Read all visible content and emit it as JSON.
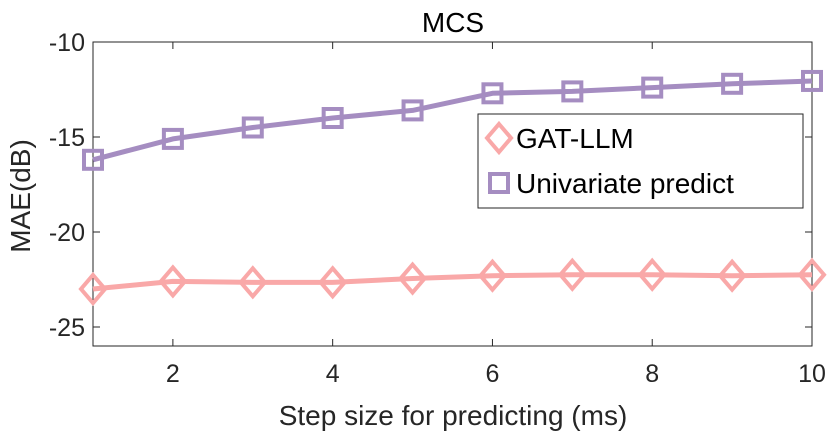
{
  "chart_data": {
    "type": "line",
    "title": "MCS",
    "xlabel": "Step size for predicting (ms)",
    "ylabel": "MAE(dB)",
    "xlim": [
      1,
      10
    ],
    "ylim": [
      -26,
      -10
    ],
    "xticks": [
      2,
      4,
      6,
      8,
      10
    ],
    "yticks": [
      -10,
      -15,
      -20,
      -25
    ],
    "grid": false,
    "legend_position": "center-right",
    "x": [
      1,
      2,
      3,
      4,
      5,
      6,
      7,
      8,
      9,
      10
    ],
    "series": [
      {
        "name": "GAT-LLM",
        "marker": "diamond",
        "color": "#f9a8a8",
        "values": [
          -23.0,
          -22.6,
          -22.65,
          -22.65,
          -22.45,
          -22.3,
          -22.25,
          -22.25,
          -22.3,
          -22.25
        ]
      },
      {
        "name": "Univariate predict",
        "marker": "square",
        "color": "#a58dc1",
        "values": [
          -16.2,
          -15.1,
          -14.5,
          -14.0,
          -13.6,
          -12.7,
          -12.6,
          -12.4,
          -12.2,
          -12.05
        ]
      }
    ]
  }
}
